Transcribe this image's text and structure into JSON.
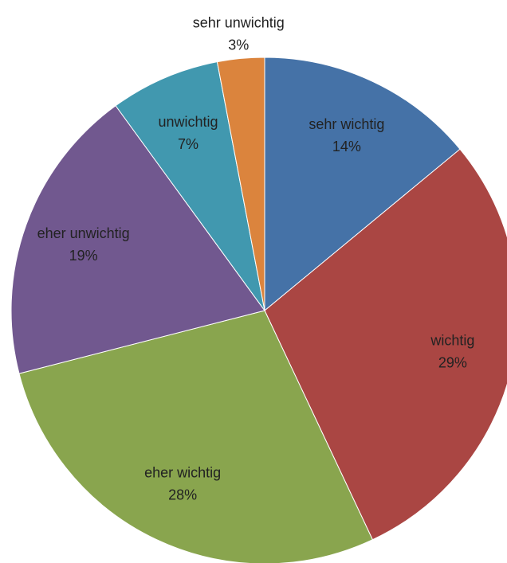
{
  "chart_data": {
    "type": "pie",
    "categories": [
      "sehr wichtig",
      "wichtig",
      "eher wichtig",
      "eher unwichtig",
      "unwichtig",
      "sehr unwichtig"
    ],
    "values": [
      14,
      29,
      28,
      19,
      7,
      3
    ],
    "value_labels": [
      "14%",
      "29%",
      "28%",
      "19%",
      "7%",
      "3%"
    ],
    "colors": [
      "#4572a7",
      "#aa4643",
      "#89a54e",
      "#71588f",
      "#4198af",
      "#db843d"
    ]
  }
}
